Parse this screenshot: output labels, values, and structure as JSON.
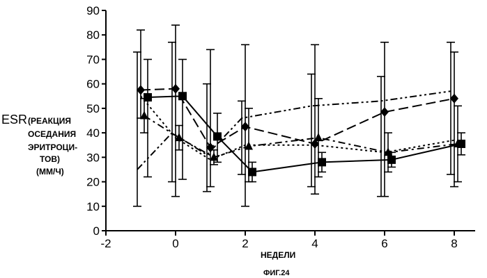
{
  "chart_data": {
    "type": "line",
    "xlabel": "НЕДЕЛИ",
    "ylabel_main": "ESR",
    "ylabel_lines": [
      "(РЕАКЦИЯ",
      "ОСЕДАНИЯ",
      "ЭРИТРОЦИ-",
      "ТОВ)",
      "(ММ/Ч)"
    ],
    "caption": "ФИГ.24",
    "xlim": [
      -2,
      8.6
    ],
    "ylim": [
      0,
      90
    ],
    "x_ticks": [
      -2,
      0,
      2,
      4,
      6,
      8
    ],
    "y_ticks": [
      0,
      10,
      20,
      30,
      40,
      50,
      60,
      70,
      80,
      90
    ],
    "grid": false,
    "series": [
      {
        "marker": "square",
        "dash": "solid",
        "points": [
          {
            "x": -0.8,
            "y": 54.5,
            "lo": 22,
            "hi": 70
          },
          {
            "x": 0.2,
            "y": 55,
            "lo": 21,
            "hi": 70
          },
          {
            "x": 1.2,
            "y": 38.5,
            "lo": 28,
            "hi": 48
          },
          {
            "x": 2.2,
            "y": 24,
            "lo": 20,
            "hi": 28
          },
          {
            "x": 4.2,
            "y": 28,
            "lo": 24,
            "hi": 32
          },
          {
            "x": 6.2,
            "y": 29,
            "lo": 26,
            "hi": 32
          },
          {
            "x": 8.2,
            "y": 35.5,
            "lo": 31,
            "hi": 40
          }
        ]
      },
      {
        "marker": "diamond",
        "dash": "long",
        "points": [
          {
            "x": -1,
            "y": 57.5,
            "lo": 46,
            "hi": 82
          },
          {
            "x": 0,
            "y": 58,
            "lo": 14,
            "hi": 84
          },
          {
            "x": 1,
            "y": 34,
            "lo": 18,
            "hi": 74
          },
          {
            "x": 2,
            "y": 42.5,
            "lo": 10,
            "hi": 76
          },
          {
            "x": 4,
            "y": 35.5,
            "lo": 15,
            "hi": 76
          },
          {
            "x": 6,
            "y": 48.5,
            "lo": 14,
            "hi": 77
          },
          {
            "x": 8,
            "y": 54,
            "lo": 18,
            "hi": 73
          }
        ]
      },
      {
        "marker": "triangle",
        "dash": "dashdot",
        "points": [
          {
            "x": -0.9,
            "y": 47,
            "lo": 40,
            "hi": 54
          },
          {
            "x": 0.1,
            "y": 38,
            "lo": 33,
            "hi": 43
          },
          {
            "x": 1.1,
            "y": 30,
            "lo": 27,
            "hi": 33
          },
          {
            "x": 2.1,
            "y": 34.5,
            "lo": 20,
            "hi": 50
          },
          {
            "x": 4.1,
            "y": 38,
            "lo": 22,
            "hi": 54
          },
          {
            "x": 6.1,
            "y": 32,
            "lo": 24,
            "hi": 40
          },
          {
            "x": 8.1,
            "y": 35.5,
            "lo": 20,
            "hi": 51
          }
        ]
      },
      {
        "marker": "none",
        "dash": "dashdotdot",
        "points": [
          {
            "x": -1.1,
            "y": 25,
            "lo": 10,
            "hi": 73
          },
          {
            "x": -0.1,
            "y": 40,
            "lo": 20,
            "hi": 77
          },
          {
            "x": 0.9,
            "y": 31,
            "lo": 16,
            "hi": 60
          },
          {
            "x": 1.9,
            "y": 46,
            "lo": 23,
            "hi": 53
          },
          {
            "x": 3.9,
            "y": 51,
            "lo": 18,
            "hi": 64
          },
          {
            "x": 5.9,
            "y": 53,
            "lo": 14,
            "hi": 63
          },
          {
            "x": 7.9,
            "y": 57,
            "lo": 23,
            "hi": 77
          }
        ]
      },
      {
        "marker": "none",
        "dash": "dotted",
        "points": [
          {
            "x": -1,
            "y": 55
          },
          {
            "x": 0,
            "y": 38
          },
          {
            "x": 1,
            "y": 29
          },
          {
            "x": 2,
            "y": 35
          },
          {
            "x": 4,
            "y": 35
          },
          {
            "x": 6,
            "y": 32
          },
          {
            "x": 8,
            "y": 37
          }
        ]
      }
    ]
  }
}
